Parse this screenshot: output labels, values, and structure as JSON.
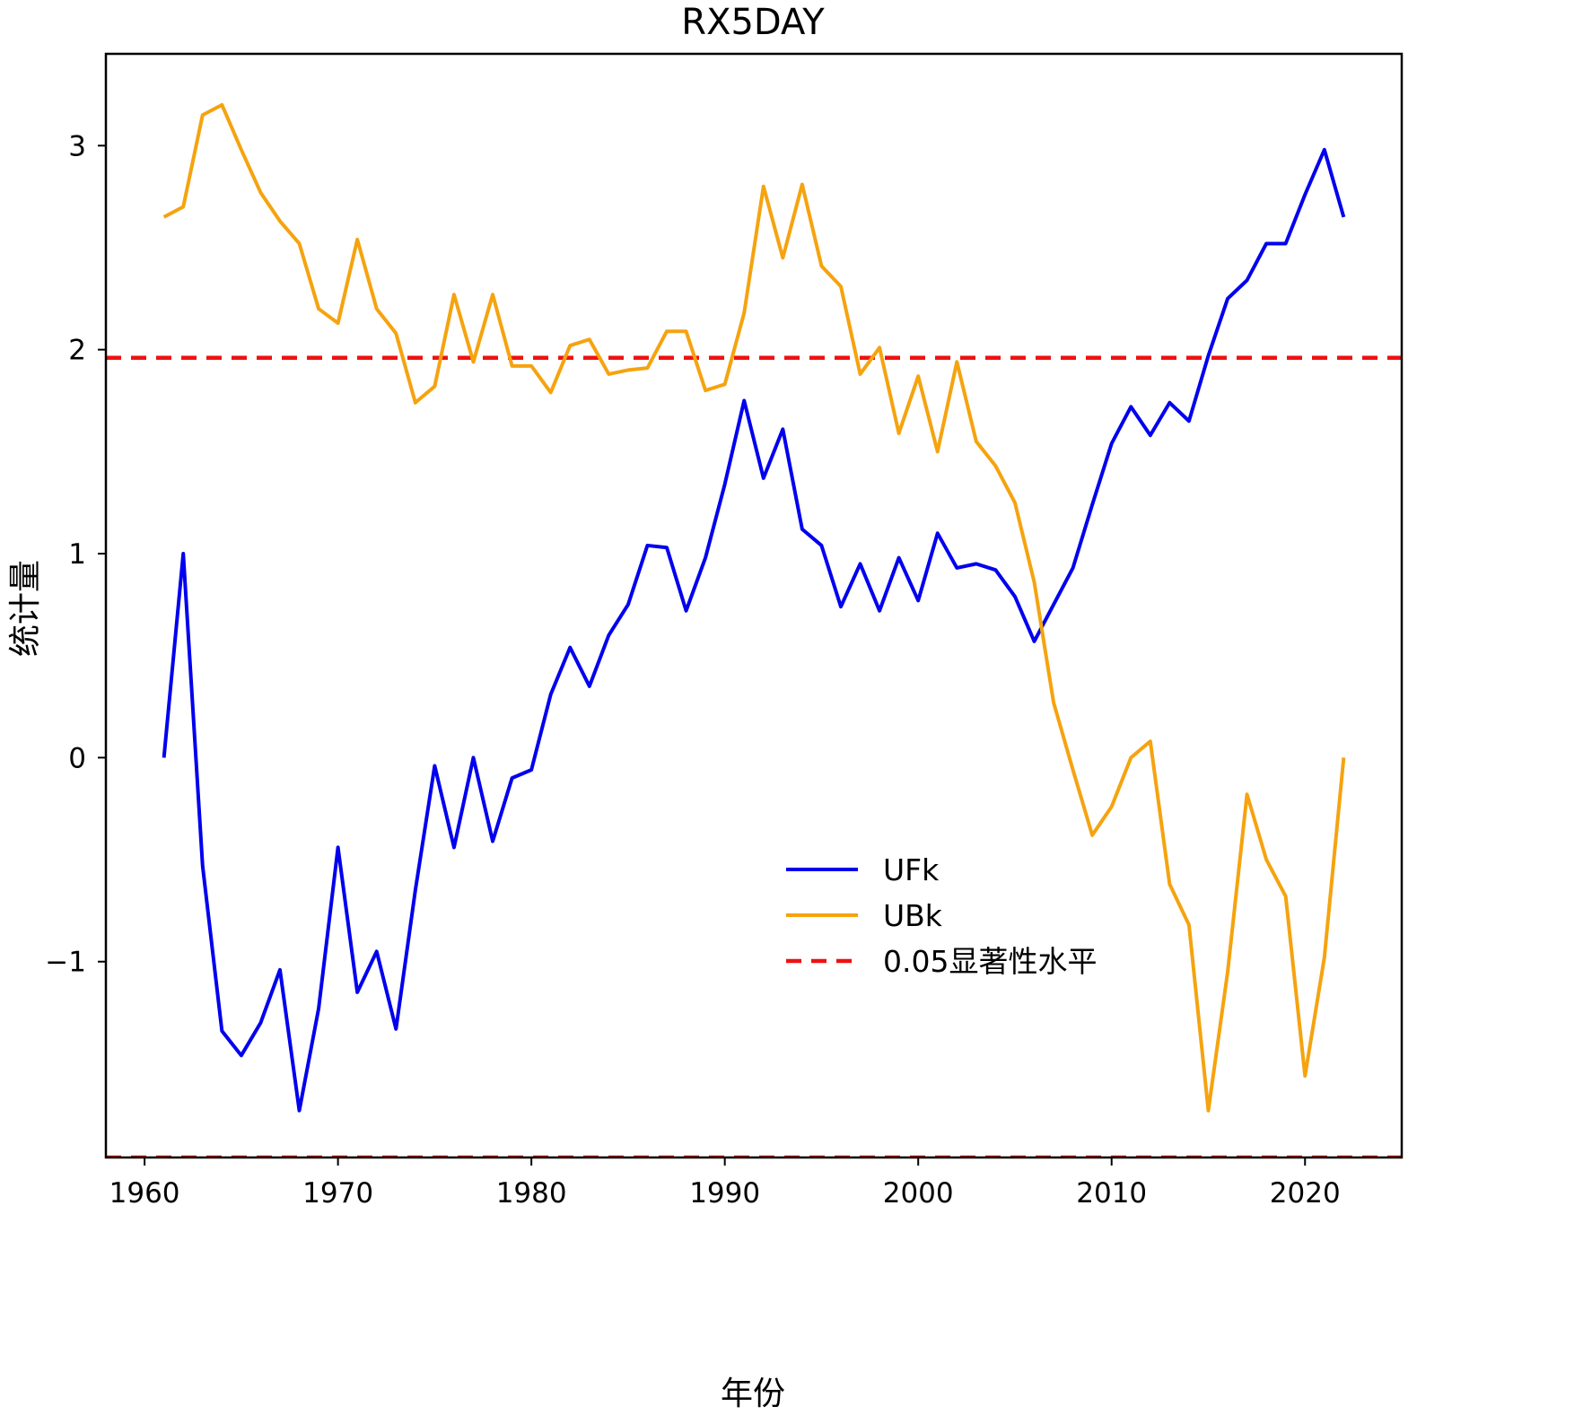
{
  "chart_data": {
    "type": "line",
    "title": "RX5DAY",
    "xlabel": "年份",
    "ylabel": "统计量",
    "xlim": [
      1958,
      2025
    ],
    "ylim": [
      -1.96,
      3.45
    ],
    "xticks": [
      1960,
      1970,
      1980,
      1990,
      2000,
      2010,
      2020
    ],
    "yticks": [
      -1,
      0,
      1,
      2,
      3
    ],
    "ytick_labels": [
      "−1",
      "0",
      "1",
      "2",
      "3"
    ],
    "grid": false,
    "legend_position": "lower-center",
    "x": [
      1961,
      1962,
      1963,
      1964,
      1965,
      1966,
      1967,
      1968,
      1969,
      1970,
      1971,
      1972,
      1973,
      1974,
      1975,
      1976,
      1977,
      1978,
      1979,
      1980,
      1981,
      1982,
      1983,
      1984,
      1985,
      1986,
      1987,
      1988,
      1989,
      1990,
      1991,
      1992,
      1993,
      1994,
      1995,
      1996,
      1997,
      1998,
      1999,
      2000,
      2001,
      2002,
      2003,
      2004,
      2005,
      2006,
      2007,
      2008,
      2009,
      2010,
      2011,
      2012,
      2013,
      2014,
      2015,
      2016,
      2017,
      2018,
      2019,
      2020,
      2021,
      2022
    ],
    "series": [
      {
        "name": "UFk",
        "color": "#0000ee",
        "style": "solid",
        "values": [
          0.0,
          1.0,
          -0.53,
          -1.34,
          -1.46,
          -1.3,
          -1.04,
          -1.73,
          -1.23,
          -0.44,
          -1.15,
          -0.95,
          -1.33,
          -0.65,
          -0.04,
          -0.44,
          0.0,
          -0.41,
          -0.1,
          -0.06,
          0.31,
          0.54,
          0.35,
          0.6,
          0.75,
          1.04,
          1.03,
          0.72,
          0.98,
          1.34,
          1.75,
          1.37,
          1.61,
          1.12,
          1.04,
          0.74,
          0.95,
          0.72,
          0.98,
          0.77,
          1.1,
          0.93,
          0.95,
          0.92,
          0.79,
          0.57,
          0.75,
          0.93,
          1.24,
          1.54,
          1.72,
          1.58,
          1.74,
          1.65,
          1.97,
          2.25,
          2.34,
          2.52,
          2.52,
          2.76,
          2.98,
          2.65
        ]
      },
      {
        "name": "UBk",
        "color": "#f5a30f",
        "style": "solid",
        "values": [
          2.65,
          2.7,
          3.15,
          3.2,
          2.98,
          2.77,
          2.63,
          2.52,
          2.2,
          2.13,
          2.54,
          2.2,
          2.08,
          1.74,
          1.82,
          2.27,
          1.94,
          2.27,
          1.92,
          1.92,
          1.79,
          2.02,
          2.05,
          1.88,
          1.9,
          1.91,
          2.09,
          2.09,
          1.8,
          1.83,
          2.18,
          2.8,
          2.45,
          2.81,
          2.41,
          2.31,
          1.88,
          2.01,
          1.59,
          1.87,
          1.5,
          1.94,
          1.55,
          1.43,
          1.25,
          0.86,
          0.27,
          -0.06,
          -0.38,
          -0.24,
          0.0,
          0.08,
          -0.62,
          -0.82,
          -1.73,
          -1.05,
          -0.18,
          -0.5,
          -0.68,
          -1.56,
          -0.98,
          0.0
        ]
      }
    ],
    "reference_lines": [
      {
        "name": "0.05显著性水平",
        "y": 1.96,
        "color": "#ee1111",
        "style": "dashed"
      },
      {
        "name": "0.05显著性水平",
        "y": -1.96,
        "color": "#ee1111",
        "style": "dashed"
      }
    ],
    "legend": [
      "UFk",
      "UBk",
      "0.05显著性水平"
    ]
  }
}
